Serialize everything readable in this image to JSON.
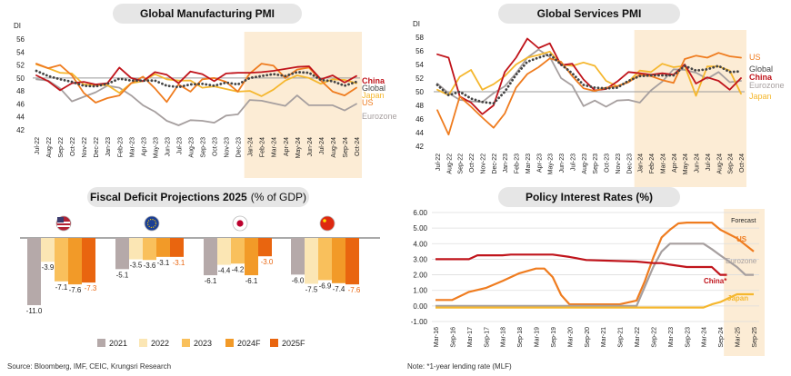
{
  "source_note": "Source: Bloomberg, IMF, CEIC, Krungsri Research",
  "footnote": "Note: *1-year lending rate (MLF)",
  "colors": {
    "china": "#c0141b",
    "global": "#444444",
    "japan": "#f5b72e",
    "us": "#ef7c1f",
    "eurozone": "#a69f9f",
    "y2021": "#b5a9a9",
    "y2022": "#fbe6b4",
    "y2023": "#f9c05c",
    "y2024F": "#f29a28",
    "y2025F": "#e9650f",
    "shade": "#fcecd5",
    "gridline": "#bbbbbb"
  },
  "chart_data": [
    {
      "type": "line",
      "title": "Global Manufacturing PMI",
      "ylabel": "DI",
      "ylim": [
        42,
        56
      ],
      "yticks": [
        "42",
        "44",
        "46",
        "48",
        "50",
        "52",
        "54",
        "56"
      ],
      "x": [
        "Jul-22",
        "Aug-22",
        "Sep-22",
        "Oct-22",
        "Nov-22",
        "Dec-22",
        "Jan-23",
        "Feb-23",
        "Mar-23",
        "Apr-23",
        "May-23",
        "Jun-23",
        "Jul-23",
        "Aug-23",
        "Sep-23",
        "Oct-23",
        "Nov-23",
        "Dec-23",
        "Jan-24",
        "Feb-24",
        "Mar-24",
        "Apr-24",
        "May-24",
        "Jun-24",
        "Jul-24",
        "Aug-24",
        "Sep-24",
        "Oct-24"
      ],
      "shaded_from": "Jan-24",
      "reference_line": 50,
      "series": [
        {
          "name": "Eurozone",
          "color_key": "eurozone",
          "style": "solid",
          "values": [
            49.8,
            49.6,
            48.4,
            46.4,
            47.1,
            47.8,
            48.8,
            48.5,
            47.3,
            45.8,
            44.8,
            43.4,
            42.7,
            43.5,
            43.4,
            43.1,
            44.2,
            44.4,
            46.6,
            46.5,
            46.1,
            45.7,
            47.3,
            45.8,
            45.8,
            45.8,
            45.0,
            46.0
          ]
        },
        {
          "name": "Japan",
          "color_key": "japan",
          "style": "solid",
          "values": [
            52.1,
            51.5,
            50.8,
            50.7,
            49.0,
            48.9,
            48.9,
            47.7,
            49.2,
            49.5,
            50.6,
            49.8,
            49.6,
            49.6,
            48.5,
            48.7,
            48.3,
            47.9,
            48.0,
            47.2,
            48.2,
            49.6,
            50.4,
            50.0,
            49.1,
            49.8,
            49.7,
            49.2
          ]
        },
        {
          "name": "US",
          "color_key": "us",
          "style": "solid",
          "values": [
            52.2,
            51.5,
            52.0,
            50.4,
            47.7,
            46.2,
            46.9,
            47.3,
            49.2,
            50.2,
            48.4,
            46.3,
            49.0,
            47.9,
            49.8,
            50.0,
            49.4,
            47.9,
            50.7,
            52.2,
            51.9,
            50.0,
            51.3,
            51.6,
            49.6,
            47.9,
            47.3,
            48.5
          ]
        },
        {
          "name": "China",
          "color_key": "china",
          "style": "solid",
          "values": [
            50.4,
            49.5,
            48.1,
            49.2,
            49.4,
            49.0,
            49.2,
            51.6,
            50.0,
            49.5,
            50.9,
            50.5,
            49.2,
            51.0,
            50.6,
            49.5,
            50.7,
            50.8,
            50.8,
            50.9,
            51.1,
            51.4,
            51.7,
            51.8,
            49.8,
            50.4,
            49.3,
            50.3
          ]
        },
        {
          "name": "Global",
          "color_key": "global",
          "style": "dotted",
          "values": [
            51.1,
            50.3,
            49.8,
            49.4,
            48.8,
            48.7,
            49.1,
            49.9,
            49.6,
            49.6,
            49.6,
            48.8,
            48.6,
            49.0,
            49.1,
            48.8,
            49.3,
            49.0,
            50.0,
            50.3,
            50.6,
            50.3,
            50.9,
            50.8,
            49.7,
            49.5,
            48.8,
            49.4
          ]
        }
      ],
      "end_labels": [
        "China",
        "Global",
        "Japan",
        "US",
        "Eurozone"
      ]
    },
    {
      "type": "line",
      "title": "Global Services PMI",
      "ylabel": "DI",
      "ylim": [
        42,
        58
      ],
      "yticks": [
        "42",
        "44",
        "46",
        "48",
        "50",
        "52",
        "54",
        "56",
        "58"
      ],
      "x": [
        "Jul-22",
        "Aug-22",
        "Sep-22",
        "Oct-22",
        "Nov-22",
        "Dec-22",
        "Jan-23",
        "Feb-23",
        "Mar-23",
        "Apr-23",
        "May-23",
        "Jun-23",
        "Jul-23",
        "Aug-23",
        "Sep-23",
        "Oct-23",
        "Nov-23",
        "Dec-23",
        "Jan-24",
        "Feb-24",
        "Mar-24",
        "Apr-24",
        "May-24",
        "Jun-24",
        "Jul-24",
        "Aug-24",
        "Sep-24",
        "Oct-24"
      ],
      "shaded_from": "Jan-24",
      "reference_line": 50,
      "series": [
        {
          "name": "Eurozone",
          "color_key": "eurozone",
          "style": "solid",
          "values": [
            51.2,
            49.8,
            48.8,
            48.6,
            48.5,
            49.8,
            50.8,
            52.7,
            55.0,
            56.2,
            55.1,
            52.0,
            50.9,
            47.9,
            48.7,
            47.8,
            48.7,
            48.8,
            48.4,
            50.2,
            51.5,
            53.3,
            53.2,
            52.8,
            51.9,
            52.9,
            51.4,
            51.6
          ]
        },
        {
          "name": "Japan",
          "color_key": "japan",
          "style": "solid",
          "values": [
            50.3,
            49.5,
            52.2,
            53.2,
            50.3,
            51.1,
            52.3,
            54.0,
            55.0,
            55.4,
            55.9,
            54.0,
            53.8,
            54.3,
            53.8,
            51.6,
            50.8,
            51.5,
            53.1,
            52.9,
            54.1,
            53.6,
            53.8,
            49.4,
            53.7,
            53.7,
            53.1,
            49.7
          ]
        },
        {
          "name": "China",
          "color_key": "china",
          "style": "solid",
          "values": [
            55.5,
            55.0,
            49.3,
            48.4,
            46.7,
            48.0,
            52.9,
            55.0,
            57.8,
            56.4,
            57.1,
            53.9,
            54.1,
            51.8,
            50.2,
            50.4,
            51.5,
            52.9,
            52.7,
            52.5,
            52.7,
            52.5,
            54.0,
            51.2,
            52.1,
            51.6,
            50.3,
            52.0
          ]
        },
        {
          "name": "US",
          "color_key": "us",
          "style": "solid",
          "values": [
            47.3,
            43.7,
            49.3,
            47.8,
            46.2,
            44.7,
            46.8,
            50.6,
            52.6,
            53.6,
            54.9,
            54.4,
            52.3,
            50.5,
            50.1,
            50.6,
            50.8,
            51.4,
            52.5,
            52.3,
            51.7,
            51.3,
            54.8,
            55.3,
            55.0,
            55.7,
            55.2,
            55.0
          ]
        },
        {
          "name": "Global",
          "color_key": "global",
          "style": "dotted",
          "values": [
            51.0,
            49.5,
            50.0,
            49.0,
            48.5,
            48.3,
            50.0,
            52.5,
            54.4,
            55.0,
            55.5,
            54.0,
            52.7,
            51.0,
            50.6,
            50.5,
            50.6,
            51.6,
            52.3,
            52.4,
            52.4,
            52.4,
            53.8,
            53.1,
            53.3,
            53.8,
            52.9,
            53.0
          ]
        }
      ],
      "end_labels": [
        "US",
        "Global",
        "China",
        "Eurozone",
        "Japan"
      ]
    },
    {
      "type": "bar",
      "title": "Fiscal Deficit Projections 2025",
      "title_suffix": "(% of GDP)",
      "ylim": [
        -11.0,
        0
      ],
      "countries": [
        {
          "flag": "US",
          "values": [
            -11.0,
            -3.9,
            -7.1,
            -7.6,
            -7.3
          ]
        },
        {
          "flag": "Eurozone",
          "values": [
            -5.1,
            -3.5,
            -3.6,
            -3.1,
            -3.1
          ]
        },
        {
          "flag": "Japan",
          "values": [
            -6.1,
            -4.4,
            -4.2,
            -6.1,
            -3.0
          ]
        },
        {
          "flag": "China",
          "values": [
            -6.0,
            -7.5,
            -6.9,
            -7.4,
            -7.6
          ]
        }
      ],
      "labels": [
        [
          "-11.0",
          "-3.9",
          "-7.1",
          "-7.6",
          "-7.3"
        ],
        [
          "-5.1",
          "-3.5",
          "-3.6",
          "-3.1",
          "-3.1"
        ],
        [
          "-6.1",
          "-4.4",
          "-4.2",
          "-6.1",
          "-3.0"
        ],
        [
          "-6.0",
          "-7.5",
          "-6.9",
          "-7.4",
          "-7.6"
        ]
      ],
      "legend": [
        "2021",
        "2022",
        "2023",
        "2024F",
        "2025F"
      ]
    },
    {
      "type": "line",
      "title": "Policy Interest Rates (%)",
      "ylim": [
        -1.0,
        6.0
      ],
      "yticks": [
        "-1.00",
        "0.00",
        "1.00",
        "2.00",
        "3.00",
        "4.00",
        "5.00",
        "6.00"
      ],
      "x": [
        "Mar-16",
        "Sep-16",
        "Mar-17",
        "Sep-17",
        "Mar-18",
        "Sep-18",
        "Mar-19",
        "Sep-19",
        "Mar-20",
        "Sep-20",
        "Mar-21",
        "Sep-21",
        "Mar-22",
        "Sep-22",
        "Mar-23",
        "Sep-23",
        "Mar-24",
        "Sep-24",
        "Mar-25",
        "Sep-25"
      ],
      "forecast_label": "Forecast",
      "forecast_from": "Sep-24",
      "series": [
        {
          "name": "US",
          "color_key": "us",
          "points": [
            [
              0,
              0.38
            ],
            [
              1,
              0.38
            ],
            [
              2,
              0.9
            ],
            [
              3,
              1.15
            ],
            [
              4,
              1.6
            ],
            [
              5,
              2.1
            ],
            [
              6,
              2.4
            ],
            [
              6.5,
              2.4
            ],
            [
              7,
              1.85
            ],
            [
              7.5,
              0.7
            ],
            [
              8,
              0.1
            ],
            [
              9,
              0.1
            ],
            [
              10,
              0.1
            ],
            [
              11,
              0.1
            ],
            [
              12,
              0.35
            ],
            [
              12.5,
              1.6
            ],
            [
              13,
              3.1
            ],
            [
              13.5,
              4.4
            ],
            [
              14,
              4.9
            ],
            [
              14.5,
              5.3
            ],
            [
              15,
              5.35
            ],
            [
              16,
              5.35
            ],
            [
              16.5,
              5.35
            ],
            [
              17,
              4.9
            ],
            [
              18,
              4.35
            ],
            [
              19,
              3.5
            ]
          ]
        },
        {
          "name": "Eurozone",
          "color_key": "eurozone",
          "points": [
            [
              0,
              0
            ],
            [
              12,
              0
            ],
            [
              12.5,
              1.25
            ],
            [
              13,
              2.5
            ],
            [
              13.5,
              3.5
            ],
            [
              14,
              4.0
            ],
            [
              15,
              4.0
            ],
            [
              16,
              4.0
            ],
            [
              16.5,
              3.65
            ],
            [
              17,
              3.25
            ],
            [
              18,
              2.5
            ],
            [
              18.5,
              2.0
            ],
            [
              19,
              2.0
            ]
          ]
        },
        {
          "name": "China",
          "color_key": "china",
          "points": [
            [
              0,
              3.0
            ],
            [
              2,
              3.0
            ],
            [
              2.5,
              3.25
            ],
            [
              4,
              3.25
            ],
            [
              4.5,
              3.3
            ],
            [
              7,
              3.3
            ],
            [
              8,
              3.15
            ],
            [
              9,
              2.95
            ],
            [
              12,
              2.85
            ],
            [
              13,
              2.75
            ],
            [
              13.5,
              2.75
            ],
            [
              14,
              2.65
            ],
            [
              15,
              2.5
            ],
            [
              16,
              2.5
            ],
            [
              16.5,
              2.5
            ],
            [
              17,
              2.0
            ],
            [
              17.4,
              2.0
            ]
          ]
        },
        {
          "name": "Japan",
          "color_key": "japan",
          "points": [
            [
              0,
              -0.1
            ],
            [
              16,
              -0.1
            ],
            [
              16.5,
              0.1
            ],
            [
              17,
              0.25
            ],
            [
              17.5,
              0.5
            ],
            [
              18,
              0.75
            ],
            [
              19,
              0.75
            ]
          ]
        }
      ],
      "end_labels": [
        "US",
        "Eurozone",
        "China*",
        "Japan"
      ]
    }
  ]
}
